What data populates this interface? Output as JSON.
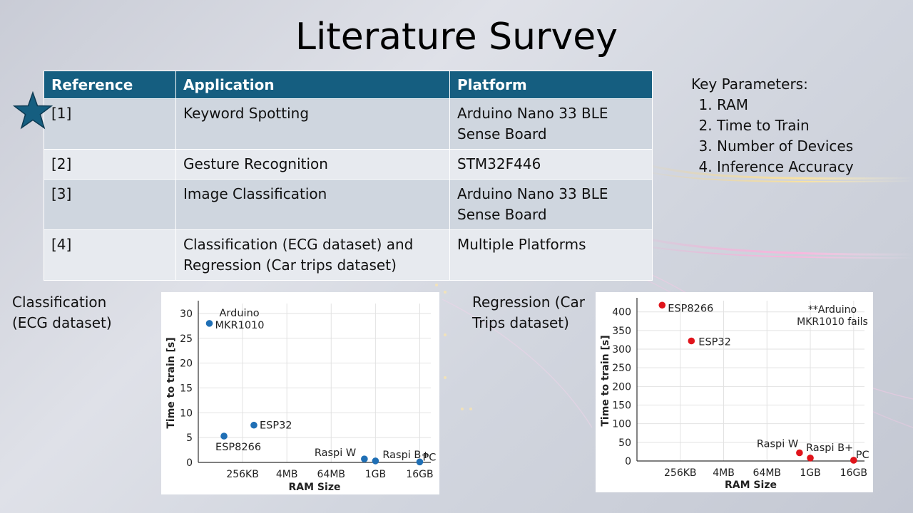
{
  "title": "Literature Survey",
  "table": {
    "headers": [
      "Reference",
      "Application",
      "Platform"
    ],
    "rows": [
      {
        "ref": "[1]",
        "application": "Keyword Spotting",
        "platform": "Arduino Nano 33 BLE Sense Board"
      },
      {
        "ref": "[2]",
        "application": "Gesture Recognition",
        "platform": "STM32F446"
      },
      {
        "ref": "[3]",
        "application": "Image Classification",
        "platform": "Arduino Nano 33 BLE Sense Board"
      },
      {
        "ref": "[4]",
        "application": "Classification (ECG dataset) and Regression (Car trips dataset)",
        "platform": "Multiple Platforms"
      }
    ]
  },
  "key_parameters": {
    "heading": "Key Parameters:",
    "items": [
      "RAM",
      "Time to Train",
      "Number of Devices",
      "Inference Accuracy"
    ]
  },
  "labels": {
    "classification": "Classification (ECG dataset)",
    "regression": "Regression (Car Trips dataset)"
  },
  "colors": {
    "header_bg": "#155e80",
    "row_odd": "#cfd6df",
    "row_even": "#e7eaef",
    "star": "#155e80",
    "classification_point": "#1f6fb5",
    "regression_point": "#e0141b"
  },
  "icons": [
    "star-icon"
  ],
  "chart_data": [
    {
      "type": "scatter",
      "title": "",
      "xlabel": "RAM Size",
      "ylabel": "Time to train [s]",
      "x_ticks": [
        "256KB",
        "4MB",
        "64MB",
        "1GB",
        "16GB"
      ],
      "ylim": [
        0,
        32
      ],
      "y_ticks": [
        0,
        5,
        10,
        15,
        20,
        25,
        30
      ],
      "grid": true,
      "points": [
        {
          "label": "Arduino MKR1010",
          "x": "32KB",
          "y": 28
        },
        {
          "label": "ESP8266",
          "x": "80KB",
          "y": 5.3
        },
        {
          "label": "ESP32",
          "x": "520KB",
          "y": 7.5
        },
        {
          "label": "Raspi W",
          "x": "512MB",
          "y": 0.7
        },
        {
          "label": "Raspi B+",
          "x": "1GB",
          "y": 0.3
        },
        {
          "label": "PC",
          "x": "16GB",
          "y": 0.1
        }
      ]
    },
    {
      "type": "scatter",
      "title": "",
      "xlabel": "RAM Size",
      "ylabel": "Time to train [s]",
      "x_ticks": [
        "256KB",
        "4MB",
        "64MB",
        "1GB",
        "16GB"
      ],
      "ylim": [
        0,
        430
      ],
      "y_ticks": [
        0,
        50,
        100,
        150,
        200,
        250,
        300,
        350,
        400
      ],
      "grid": true,
      "annotation": "**Arduino MKR1010 fails",
      "points": [
        {
          "label": "ESP8266",
          "x": "80KB",
          "y": 418
        },
        {
          "label": "ESP32",
          "x": "520KB",
          "y": 322
        },
        {
          "label": "Raspi W",
          "x": "512MB",
          "y": 22
        },
        {
          "label": "Raspi B+",
          "x": "1GB",
          "y": 8
        },
        {
          "label": "PC",
          "x": "16GB",
          "y": 2
        }
      ]
    }
  ]
}
